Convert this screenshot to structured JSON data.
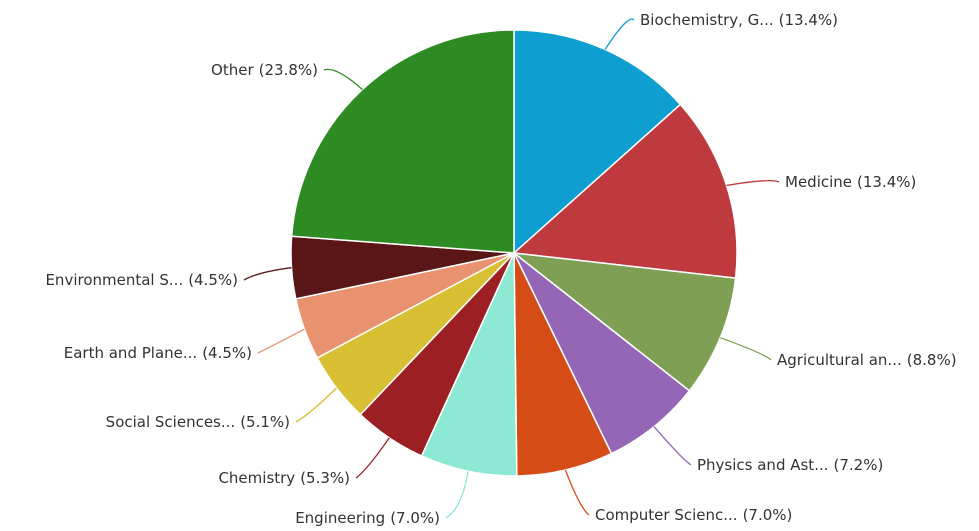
{
  "chart_data": {
    "type": "pie",
    "categories": [
      "Biochemistry, G...",
      "Medicine",
      "Agricultural an...",
      "Physics and Ast...",
      "Computer Scienc...",
      "Engineering",
      "Chemistry",
      "Social Sciences...",
      "Earth and Plane...",
      "Environmental S...",
      "Other"
    ],
    "values": [
      13.4,
      13.4,
      8.8,
      7.2,
      7.0,
      7.0,
      5.3,
      5.1,
      4.5,
      4.5,
      23.8
    ],
    "value_labels": [
      "(13.4%)",
      "(13.4%)",
      "(8.8%)",
      "(7.2%)",
      "(7.0%)",
      "(7.0%)",
      "(5.3%)",
      "(5.1%)",
      "(4.5%)",
      "(4.5%)",
      "(23.8%)"
    ],
    "colors": [
      "#0e9fd0",
      "#bf3a3f",
      "#7fa054",
      "#9466b5",
      "#d54c17",
      "#8de8d4",
      "#9c1f24",
      "#d9bf33",
      "#e8926f",
      "#5a1616",
      "#2e8b24"
    ]
  }
}
